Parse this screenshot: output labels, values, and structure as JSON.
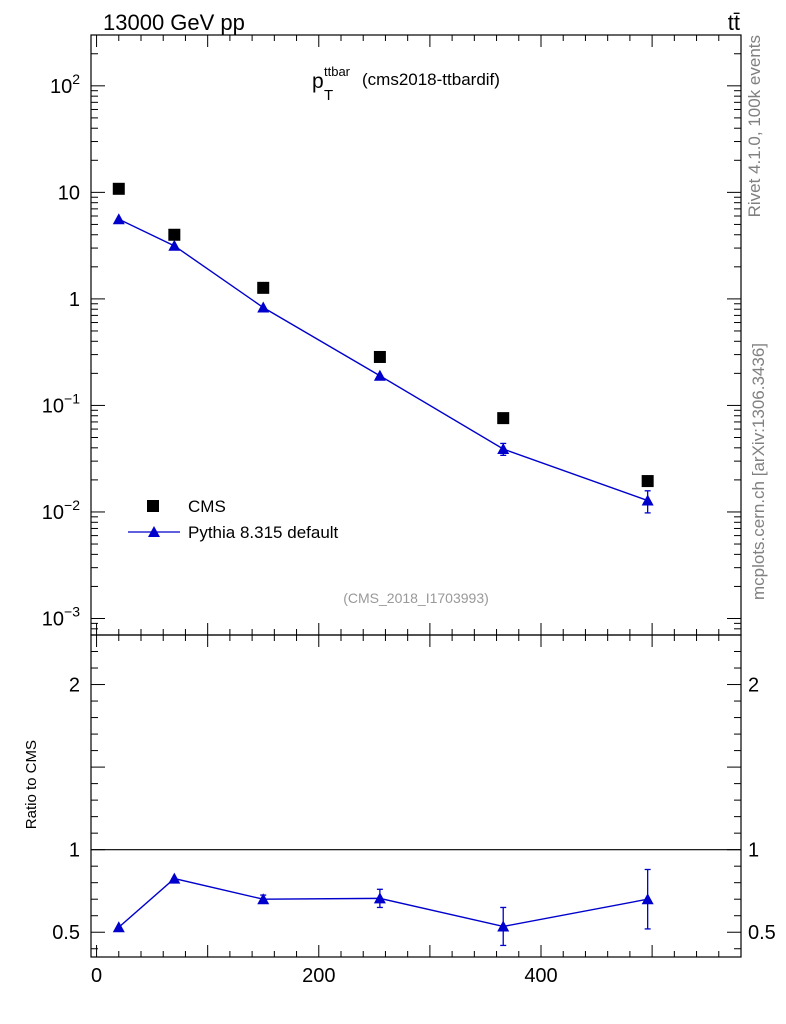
{
  "header": {
    "energy_label": "13000 GeV pp",
    "process_label": "tt̄"
  },
  "side_text": {
    "version": "Rivet 4.1.0,  100k events",
    "site": "mcplots.cern.ch [arXiv:1306.3436]"
  },
  "colors": {
    "data": "#000000",
    "mc": "#0000cc",
    "faint": "#999999",
    "side": "#808080"
  },
  "chart_data": {
    "type": "scatter",
    "title_main": "p",
    "title_sup": "ttbar",
    "title_sub": "T",
    "title_rest": "(cms2018-ttbardif)",
    "analysis_label": "(CMS_2018_I1703993)",
    "xlim": [
      -5,
      580
    ],
    "xticks": [
      0,
      200,
      400
    ],
    "upper": {
      "yscale": "log",
      "ylim": [
        0.0007,
        300
      ],
      "yticks": [
        {
          "value": 0.001,
          "base": "10",
          "exp": "−3"
        },
        {
          "value": 0.01,
          "base": "10",
          "exp": "−2"
        },
        {
          "value": 0.1,
          "base": "10",
          "exp": "−1"
        },
        {
          "value": 1,
          "base": "1",
          "exp": ""
        },
        {
          "value": 10,
          "base": "10",
          "exp": ""
        },
        {
          "value": 100,
          "base": "10",
          "exp": "2"
        }
      ]
    },
    "lower": {
      "ylabel": "Ratio to CMS",
      "ylim": [
        0.35,
        2.3
      ],
      "yticks": [
        0.5,
        1,
        2
      ],
      "ytick_labels": [
        "0.5",
        "1",
        "2"
      ],
      "reference": 1
    },
    "series": [
      {
        "name": "CMS",
        "marker": "square",
        "x": [
          20,
          70,
          150,
          255,
          366,
          496
        ],
        "y": [
          10.8,
          4.0,
          1.27,
          0.285,
          0.076,
          0.0195
        ]
      },
      {
        "name": "Pythia 8.315 default",
        "marker": "triangle",
        "x": [
          20,
          70,
          150,
          255,
          366,
          496
        ],
        "y": [
          5.6,
          3.15,
          0.83,
          0.19,
          0.039,
          0.0128
        ],
        "yerr": [
          0.1,
          0.06,
          0.02,
          0.01,
          0.005,
          0.003
        ],
        "ratio": [
          0.53,
          0.825,
          0.7,
          0.705,
          0.535,
          0.7
        ],
        "ratio_err": [
          0.005,
          0.01,
          0.025,
          0.055,
          0.115,
          0.18
        ]
      }
    ]
  }
}
